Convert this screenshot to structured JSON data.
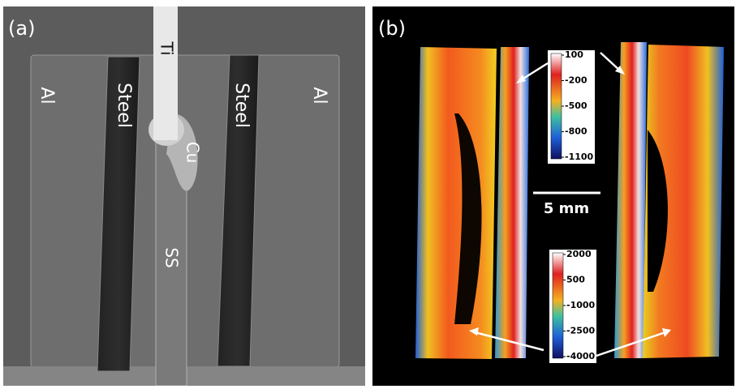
{
  "panel_a": {
    "label": "(a)",
    "labels": {
      "ti": "Ti",
      "steel_left": "Steel",
      "steel_right": "Steel",
      "al_left": "Al",
      "al_right": "Al",
      "cu": "Cu",
      "ss": "SS"
    }
  },
  "panel_b": {
    "label": "(b)",
    "scale_bar": "5 mm",
    "colorbar_top": {
      "ticks": [
        100,
        -200,
        -500,
        -800,
        -1100
      ]
    },
    "colorbar_bottom": {
      "ticks": [
        2000,
        500,
        -1000,
        -2500,
        -4000
      ]
    }
  }
}
